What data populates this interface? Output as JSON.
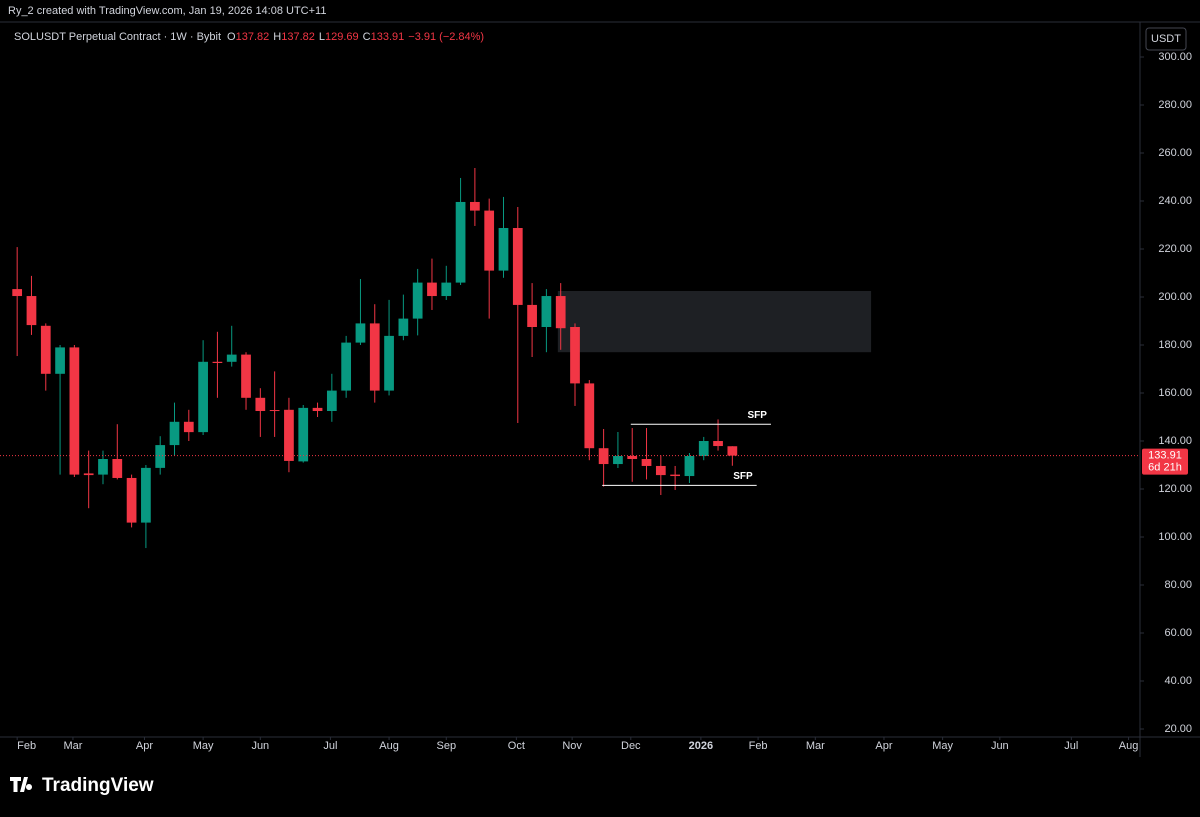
{
  "header": {
    "credit": "Ry_2 created with TradingView.com, Jan 19, 2026 14:08 UTC+11",
    "symbol": "SOLUSDT Perpetual Contract · 1W · Bybit",
    "ohlc_labels": [
      "O",
      "H",
      "L",
      "C"
    ],
    "change": "−3.91 (−2.84%)",
    "currency": "USDT"
  },
  "footer": {
    "logo": "TradingView"
  },
  "chart_data": {
    "type": "candlestick",
    "up_color": "#089981",
    "down_color": "#f23645",
    "open": [
      203.3,
      200.4,
      188,
      168,
      179,
      126.5,
      126,
      132.5,
      124.6,
      106,
      128.8,
      138.3,
      148,
      143.7,
      173,
      173,
      176,
      158,
      152.9,
      153,
      131.5,
      153.8,
      152.5,
      161,
      181,
      189,
      161,
      183.8,
      191,
      206,
      200.4,
      206,
      239.6,
      236,
      211,
      228.75,
      196.7,
      187.5,
      200.4,
      187.5,
      164,
      137,
      130.4,
      133.75,
      132.5,
      129.6,
      126,
      125.4,
      133.75,
      140,
      137.82
    ],
    "high": [
      220.8,
      208.8,
      189,
      180,
      180,
      136,
      136,
      147,
      126,
      130,
      142,
      156,
      153,
      182,
      185.5,
      188,
      177,
      162,
      169,
      158,
      155,
      156,
      168,
      183.8,
      207.5,
      197,
      198.8,
      201,
      211.7,
      216,
      213,
      249.6,
      253.75,
      241,
      241.7,
      237.5,
      205.8,
      203.3,
      205.8,
      189,
      165.4,
      145,
      143.75,
      145.4,
      145.4,
      134,
      129.6,
      135,
      141.7,
      149,
      137.82
    ],
    "low": [
      175.4,
      184.2,
      161,
      126,
      125,
      112,
      122,
      124,
      104,
      95.4,
      126,
      134,
      140,
      142.5,
      158,
      171,
      153,
      141.7,
      141.7,
      127,
      131,
      150,
      148,
      158,
      180,
      156,
      159,
      182,
      184,
      194.6,
      198.75,
      205,
      229.6,
      191,
      208,
      147.5,
      175,
      177,
      178,
      154.6,
      132,
      121,
      128.75,
      123,
      124,
      117.5,
      119.6,
      122.5,
      132,
      136,
      129.69
    ],
    "close": [
      200.4,
      188.3,
      168,
      179,
      126,
      125.8,
      132.5,
      124.6,
      106,
      128.8,
      138.3,
      148,
      143.7,
      173,
      172.5,
      176,
      158,
      152.5,
      152.6,
      131.7,
      153.8,
      152.5,
      161,
      181,
      189,
      161,
      183.8,
      191,
      206,
      200.4,
      206,
      239.6,
      236,
      211,
      228.75,
      196.7,
      187.5,
      200.4,
      187,
      164,
      137,
      130.4,
      133.75,
      132.5,
      129.6,
      125.8,
      125.4,
      133.75,
      140,
      137.9,
      133.91
    ],
    "countdown": "6d 21h",
    "zone": [
      177,
      202.5
    ],
    "annotations": [
      {
        "label": "SFP",
        "value": 147
      },
      {
        "label": "SFP",
        "value": 121.5
      }
    ],
    "ylim": [
      16.67,
      313.75
    ],
    "yticks": [
      {
        "value": 20,
        "label": "20.00"
      },
      {
        "value": 40,
        "label": "40.00"
      },
      {
        "value": 60,
        "label": "60.00"
      },
      {
        "value": 80,
        "label": "80.00"
      },
      {
        "value": 100,
        "label": "100.00"
      },
      {
        "value": 120,
        "label": "120.00"
      },
      {
        "value": 140,
        "label": "140.00"
      },
      {
        "value": 160,
        "label": "160.00"
      },
      {
        "value": 180,
        "label": "180.00"
      },
      {
        "value": 200,
        "label": "200.00"
      },
      {
        "value": 220,
        "label": "220.00"
      },
      {
        "value": 240,
        "label": "240.00"
      },
      {
        "value": 260,
        "label": "260.00"
      },
      {
        "value": 280,
        "label": "280.00"
      },
      {
        "value": 300,
        "label": "300.00"
      }
    ],
    "xlim": [
      -1.2,
      78.5
    ],
    "xticks": [
      {
        "value": 0,
        "label": "Feb"
      },
      {
        "value": 3.9,
        "label": "Mar"
      },
      {
        "value": 8.9,
        "label": "Apr"
      },
      {
        "value": 13,
        "label": "May"
      },
      {
        "value": 17,
        "label": "Jun"
      },
      {
        "value": 21.9,
        "label": "Jul"
      },
      {
        "value": 26,
        "label": "Aug"
      },
      {
        "value": 30,
        "label": "Sep"
      },
      {
        "value": 34.9,
        "label": "Oct"
      },
      {
        "value": 38.8,
        "label": "Nov"
      },
      {
        "value": 42.9,
        "label": "Dec"
      },
      {
        "value": 47.8,
        "label": "2026"
      },
      {
        "value": 51.8,
        "label": "Feb"
      },
      {
        "value": 55.8,
        "label": "Mar"
      },
      {
        "value": 60.6,
        "label": "Apr"
      },
      {
        "value": 64.7,
        "label": "May"
      },
      {
        "value": 68.7,
        "label": "Jun"
      },
      {
        "value": 73.7,
        "label": "Jul"
      },
      {
        "value": 77.7,
        "label": "Aug"
      }
    ]
  }
}
